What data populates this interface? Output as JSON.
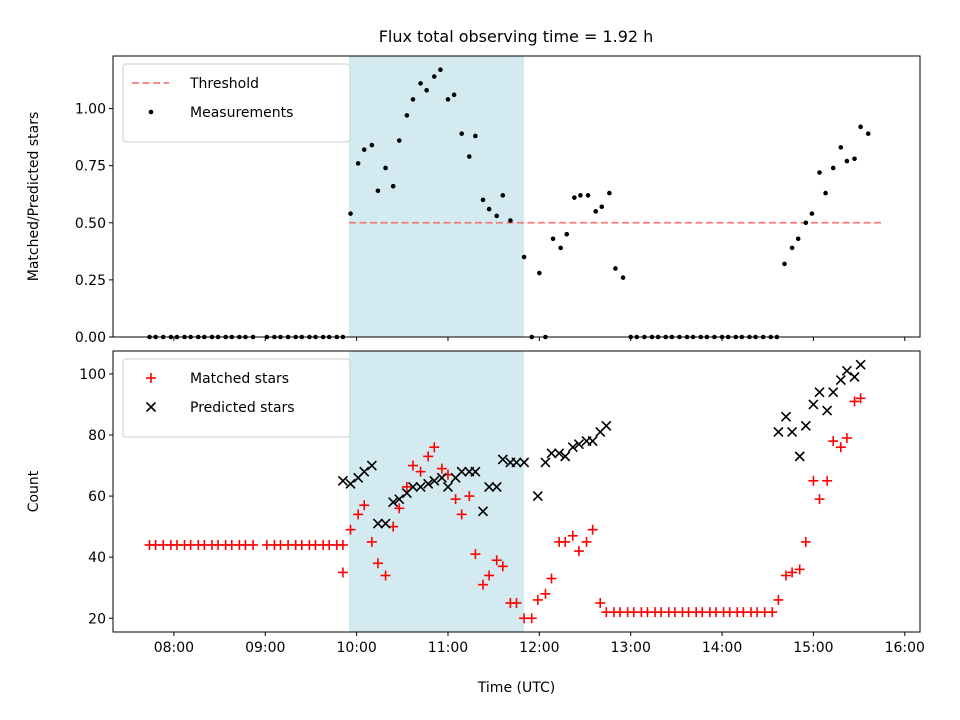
{
  "title": "Flux total observing time = 1.92 h",
  "chart_data": [
    {
      "type": "scatter",
      "ylabel": "Matched/Predicted stars",
      "xlim": [
        "07:20",
        "16:10"
      ],
      "ylim": [
        0,
        1.23
      ],
      "yticks": [
        "0.00",
        "0.25",
        "0.50",
        "0.75",
        "1.00"
      ],
      "grid": false,
      "legend_position": "top-left",
      "highlight_span": {
        "from": "09:55",
        "to": "11:50",
        "color": "#d3eaf1"
      },
      "threshold": {
        "name": "Threshold",
        "y": 0.5,
        "from": "09:55",
        "to": "15:45",
        "color": "#f27c7c"
      },
      "series": [
        {
          "name": "Measurements",
          "marker": "dot",
          "color": "#000000",
          "points": [
            [
              "07:44",
              0
            ],
            [
              "07:48",
              0
            ],
            [
              "07:53",
              0
            ],
            [
              "07:58",
              0
            ],
            [
              "08:02",
              0
            ],
            [
              "08:07",
              0
            ],
            [
              "08:11",
              0
            ],
            [
              "08:16",
              0
            ],
            [
              "08:20",
              0
            ],
            [
              "08:25",
              0
            ],
            [
              "08:29",
              0
            ],
            [
              "08:34",
              0
            ],
            [
              "08:38",
              0
            ],
            [
              "08:43",
              0
            ],
            [
              "08:47",
              0
            ],
            [
              "08:52",
              0
            ],
            [
              "09:01",
              0
            ],
            [
              "09:06",
              0
            ],
            [
              "09:10",
              0
            ],
            [
              "09:15",
              0
            ],
            [
              "09:20",
              0
            ],
            [
              "09:24",
              0
            ],
            [
              "09:29",
              0
            ],
            [
              "09:33",
              0
            ],
            [
              "09:38",
              0
            ],
            [
              "09:42",
              0
            ],
            [
              "09:47",
              0
            ],
            [
              "09:51",
              0
            ],
            [
              "09:56",
              0.54
            ],
            [
              "10:01",
              0.76
            ],
            [
              "10:05",
              0.82
            ],
            [
              "10:10",
              0.84
            ],
            [
              "10:14",
              0.64
            ],
            [
              "10:19",
              0.74
            ],
            [
              "10:24",
              0.66
            ],
            [
              "10:28",
              0.86
            ],
            [
              "10:33",
              0.97
            ],
            [
              "10:37",
              1.04
            ],
            [
              "10:42",
              1.11
            ],
            [
              "10:46",
              1.08
            ],
            [
              "10:51",
              1.14
            ],
            [
              "10:55",
              1.17
            ],
            [
              "11:00",
              1.04
            ],
            [
              "11:04",
              1.06
            ],
            [
              "11:09",
              0.89
            ],
            [
              "11:14",
              0.79
            ],
            [
              "11:18",
              0.88
            ],
            [
              "11:23",
              0.6
            ],
            [
              "11:27",
              0.56
            ],
            [
              "11:32",
              0.53
            ],
            [
              "11:36",
              0.62
            ],
            [
              "11:41",
              0.51
            ],
            [
              "11:50",
              0.35
            ],
            [
              "11:55",
              0
            ],
            [
              "12:00",
              0.28
            ],
            [
              "12:04",
              0
            ],
            [
              "12:09",
              0.43
            ],
            [
              "12:14",
              0.39
            ],
            [
              "12:18",
              0.45
            ],
            [
              "12:23",
              0.61
            ],
            [
              "12:27",
              0.62
            ],
            [
              "12:32",
              0.62
            ],
            [
              "12:37",
              0.55
            ],
            [
              "12:41",
              0.57
            ],
            [
              "12:46",
              0.63
            ],
            [
              "12:50",
              0.3
            ],
            [
              "12:55",
              0.26
            ],
            [
              "13:00",
              0
            ],
            [
              "13:04",
              0
            ],
            [
              "13:09",
              0
            ],
            [
              "13:14",
              0
            ],
            [
              "13:18",
              0
            ],
            [
              "13:23",
              0
            ],
            [
              "13:27",
              0
            ],
            [
              "13:32",
              0
            ],
            [
              "13:37",
              0
            ],
            [
              "13:41",
              0
            ],
            [
              "13:46",
              0
            ],
            [
              "13:50",
              0
            ],
            [
              "13:55",
              0
            ],
            [
              "14:00",
              0
            ],
            [
              "14:04",
              0
            ],
            [
              "14:09",
              0
            ],
            [
              "14:13",
              0
            ],
            [
              "14:18",
              0
            ],
            [
              "14:22",
              0
            ],
            [
              "14:27",
              0
            ],
            [
              "14:32",
              0
            ],
            [
              "14:36",
              0
            ],
            [
              "14:41",
              0.32
            ],
            [
              "14:46",
              0.39
            ],
            [
              "14:50",
              0.43
            ],
            [
              "14:55",
              0.5
            ],
            [
              "14:59",
              0.54
            ],
            [
              "15:04",
              0.72
            ],
            [
              "15:08",
              0.63
            ],
            [
              "15:13",
              0.74
            ],
            [
              "15:18",
              0.83
            ],
            [
              "15:22",
              0.77
            ],
            [
              "15:27",
              0.78
            ],
            [
              "15:31",
              0.92
            ],
            [
              "15:36",
              0.89
            ]
          ]
        }
      ]
    },
    {
      "type": "scatter",
      "xlabel": "Time (UTC)",
      "ylabel": "Count",
      "xlim": [
        "07:20",
        "16:10"
      ],
      "ylim": [
        15.5,
        107.5
      ],
      "yticks": [
        "20",
        "40",
        "60",
        "80",
        "100"
      ],
      "xticks": [
        "08:00",
        "09:00",
        "10:00",
        "11:00",
        "12:00",
        "13:00",
        "14:00",
        "15:00",
        "16:00"
      ],
      "grid": false,
      "legend_position": "top-left",
      "highlight_span": {
        "from": "09:55",
        "to": "11:50",
        "color": "#d3eaf1"
      },
      "series": [
        {
          "name": "Matched stars",
          "marker": "plus",
          "color": "#ff0000",
          "points": [
            [
              "07:44",
              44
            ],
            [
              "07:48",
              44
            ],
            [
              "07:53",
              44
            ],
            [
              "07:58",
              44
            ],
            [
              "08:02",
              44
            ],
            [
              "08:07",
              44
            ],
            [
              "08:11",
              44
            ],
            [
              "08:16",
              44
            ],
            [
              "08:20",
              44
            ],
            [
              "08:25",
              44
            ],
            [
              "08:29",
              44
            ],
            [
              "08:34",
              44
            ],
            [
              "08:38",
              44
            ],
            [
              "08:43",
              44
            ],
            [
              "08:47",
              44
            ],
            [
              "08:52",
              44
            ],
            [
              "09:01",
              44
            ],
            [
              "09:06",
              44
            ],
            [
              "09:10",
              44
            ],
            [
              "09:15",
              44
            ],
            [
              "09:20",
              44
            ],
            [
              "09:24",
              44
            ],
            [
              "09:29",
              44
            ],
            [
              "09:33",
              44
            ],
            [
              "09:38",
              44
            ],
            [
              "09:42",
              44
            ],
            [
              "09:47",
              44
            ],
            [
              "09:51",
              44
            ],
            [
              "09:51",
              35
            ],
            [
              "09:56",
              49
            ],
            [
              "10:01",
              54
            ],
            [
              "10:05",
              57
            ],
            [
              "10:10",
              45
            ],
            [
              "10:14",
              38
            ],
            [
              "10:19",
              34
            ],
            [
              "10:24",
              50
            ],
            [
              "10:28",
              56
            ],
            [
              "10:33",
              63
            ],
            [
              "10:37",
              70
            ],
            [
              "10:42",
              68
            ],
            [
              "10:47",
              73
            ],
            [
              "10:51",
              76
            ],
            [
              "10:56",
              69
            ],
            [
              "11:00",
              67
            ],
            [
              "11:05",
              59
            ],
            [
              "11:09",
              54
            ],
            [
              "11:14",
              60
            ],
            [
              "11:18",
              41
            ],
            [
              "11:23",
              31
            ],
            [
              "11:27",
              34
            ],
            [
              "11:32",
              39
            ],
            [
              "11:36",
              37
            ],
            [
              "11:41",
              25
            ],
            [
              "11:45",
              25
            ],
            [
              "11:50",
              20
            ],
            [
              "11:55",
              20
            ],
            [
              "11:59",
              26
            ],
            [
              "12:04",
              28
            ],
            [
              "12:08",
              33
            ],
            [
              "12:13",
              45
            ],
            [
              "12:17",
              45
            ],
            [
              "12:22",
              47
            ],
            [
              "12:26",
              42
            ],
            [
              "12:31",
              45
            ],
            [
              "12:35",
              49
            ],
            [
              "12:40",
              25
            ],
            [
              "12:44",
              22
            ],
            [
              "12:49",
              22
            ],
            [
              "12:53",
              22
            ],
            [
              "12:58",
              22
            ],
            [
              "13:02",
              22
            ],
            [
              "13:07",
              22
            ],
            [
              "13:11",
              22
            ],
            [
              "13:16",
              22
            ],
            [
              "13:20",
              22
            ],
            [
              "13:25",
              22
            ],
            [
              "13:29",
              22
            ],
            [
              "13:34",
              22
            ],
            [
              "13:38",
              22
            ],
            [
              "13:43",
              22
            ],
            [
              "13:47",
              22
            ],
            [
              "13:52",
              22
            ],
            [
              "13:56",
              22
            ],
            [
              "14:01",
              22
            ],
            [
              "14:05",
              22
            ],
            [
              "14:10",
              22
            ],
            [
              "14:14",
              22
            ],
            [
              "14:19",
              22
            ],
            [
              "14:23",
              22
            ],
            [
              "14:28",
              22
            ],
            [
              "14:33",
              22
            ],
            [
              "14:37",
              26
            ],
            [
              "14:42",
              34
            ],
            [
              "14:46",
              35
            ],
            [
              "14:51",
              36
            ],
            [
              "14:55",
              45
            ],
            [
              "15:00",
              65
            ],
            [
              "15:04",
              59
            ],
            [
              "15:09",
              65
            ],
            [
              "15:13",
              78
            ],
            [
              "15:18",
              76
            ],
            [
              "15:22",
              79
            ],
            [
              "15:27",
              91
            ],
            [
              "15:31",
              92
            ]
          ]
        },
        {
          "name": "Predicted stars",
          "marker": "x",
          "color": "#000000",
          "points": [
            [
              "09:51",
              65
            ],
            [
              "09:56",
              64
            ],
            [
              "10:01",
              66
            ],
            [
              "10:05",
              68
            ],
            [
              "10:10",
              70
            ],
            [
              "10:14",
              51
            ],
            [
              "10:19",
              51
            ],
            [
              "10:24",
              58
            ],
            [
              "10:28",
              59
            ],
            [
              "10:33",
              61
            ],
            [
              "10:37",
              63
            ],
            [
              "10:42",
              63
            ],
            [
              "10:47",
              64
            ],
            [
              "10:51",
              65
            ],
            [
              "10:56",
              66
            ],
            [
              "11:00",
              63
            ],
            [
              "11:05",
              66
            ],
            [
              "11:09",
              68
            ],
            [
              "11:14",
              68
            ],
            [
              "11:18",
              68
            ],
            [
              "11:23",
              55
            ],
            [
              "11:27",
              63
            ],
            [
              "11:32",
              63
            ],
            [
              "11:36",
              72
            ],
            [
              "11:41",
              71
            ],
            [
              "11:45",
              71
            ],
            [
              "11:50",
              71
            ],
            [
              "11:59",
              60
            ],
            [
              "12:04",
              71
            ],
            [
              "12:08",
              74
            ],
            [
              "12:13",
              74
            ],
            [
              "12:17",
              73
            ],
            [
              "12:22",
              76
            ],
            [
              "12:26",
              77
            ],
            [
              "12:31",
              78
            ],
            [
              "12:35",
              78
            ],
            [
              "12:40",
              81
            ],
            [
              "12:44",
              83
            ],
            [
              "14:37",
              81
            ],
            [
              "14:42",
              86
            ],
            [
              "14:46",
              81
            ],
            [
              "14:51",
              73
            ],
            [
              "14:55",
              83
            ],
            [
              "15:00",
              90
            ],
            [
              "15:04",
              94
            ],
            [
              "15:09",
              88
            ],
            [
              "15:13",
              94
            ],
            [
              "15:18",
              98
            ],
            [
              "15:22",
              101
            ],
            [
              "15:27",
              99
            ],
            [
              "15:31",
              103
            ]
          ]
        }
      ]
    }
  ]
}
